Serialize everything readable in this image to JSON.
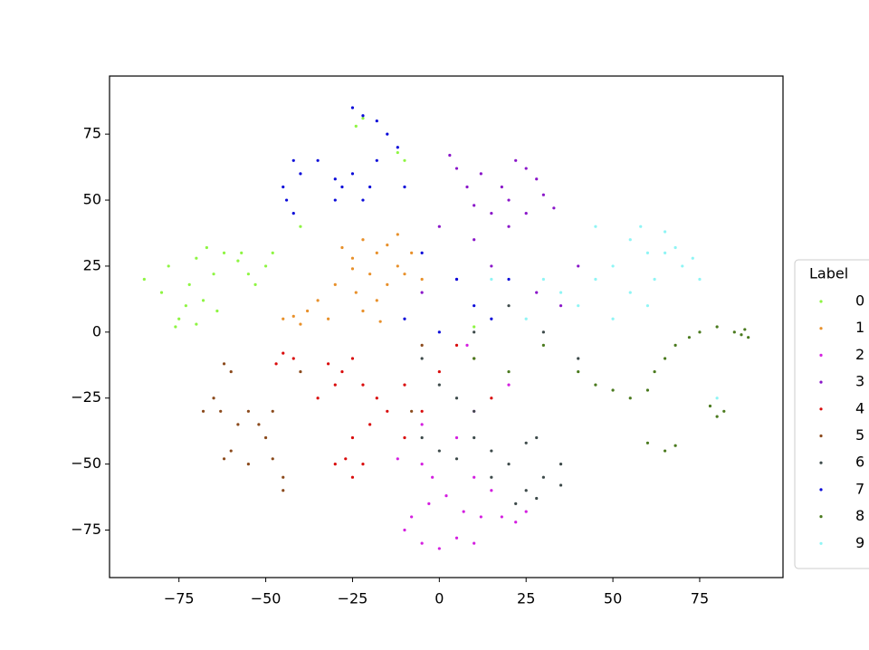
{
  "chart_data": {
    "type": "scatter",
    "legend_title": "Label",
    "legend": "right",
    "marker_radius": 1.6,
    "xlim": [
      -95,
      99
    ],
    "ylim": [
      -93,
      97
    ],
    "xticks": [
      {
        "value": -75,
        "label": "−75"
      },
      {
        "value": -50,
        "label": "−50"
      },
      {
        "value": -25,
        "label": "−25"
      },
      0,
      25,
      50,
      75
    ],
    "yticks": [
      {
        "value": -75,
        "label": "−75"
      },
      {
        "value": -50,
        "label": "−50"
      },
      {
        "value": -25,
        "label": "−25"
      },
      0,
      25,
      50,
      75
    ],
    "series": [
      {
        "name": "0",
        "color": "#8ef542",
        "x": [
          -85,
          -80,
          -78,
          -75,
          -73,
          -72,
          -70,
          -68,
          -67,
          -65,
          -64,
          -62,
          -58,
          -55,
          -53,
          -50,
          -48,
          -57,
          -76,
          -70,
          -24,
          -22,
          -10,
          -12,
          -40,
          10
        ],
        "y": [
          20,
          15,
          25,
          5,
          10,
          18,
          28,
          12,
          32,
          22,
          8,
          30,
          27,
          22,
          18,
          25,
          30,
          30,
          2,
          3,
          78,
          81,
          65,
          68,
          40,
          2
        ]
      },
      {
        "name": "1",
        "color": "#e8902a",
        "x": [
          -28,
          -25,
          -22,
          -18,
          -15,
          -12,
          -8,
          -10,
          -20,
          -24,
          -22,
          -18,
          -15,
          -12,
          -45,
          -42,
          -38,
          -35,
          -32,
          -40,
          -30,
          -5,
          -25,
          -17
        ],
        "y": [
          32,
          28,
          35,
          30,
          33,
          37,
          30,
          22,
          22,
          15,
          8,
          12,
          18,
          25,
          5,
          6,
          8,
          12,
          5,
          3,
          18,
          20,
          24,
          4
        ]
      },
      {
        "name": "2",
        "color": "#d41fe0",
        "x": [
          -10,
          -5,
          0,
          5,
          10,
          -8,
          -3,
          2,
          7,
          -2,
          -5,
          10,
          12,
          18,
          22,
          25,
          15,
          -12,
          5,
          10,
          -5,
          8,
          20
        ],
        "y": [
          -75,
          -80,
          -82,
          -78,
          -80,
          -70,
          -65,
          -62,
          -68,
          -55,
          -50,
          -55,
          -70,
          -70,
          -72,
          -68,
          -60,
          -48,
          -40,
          -30,
          -35,
          -5,
          -20
        ]
      },
      {
        "name": "3",
        "color": "#8a16c9",
        "x": [
          5,
          8,
          3,
          10,
          12,
          15,
          20,
          22,
          25,
          28,
          30,
          33,
          20,
          18,
          25,
          0,
          10,
          15,
          5,
          -5,
          28,
          35,
          40
        ],
        "y": [
          62,
          55,
          67,
          48,
          60,
          45,
          50,
          65,
          62,
          58,
          52,
          47,
          40,
          55,
          45,
          40,
          35,
          25,
          20,
          15,
          15,
          10,
          25
        ]
      },
      {
        "name": "4",
        "color": "#d90b0b",
        "x": [
          -45,
          -42,
          -47,
          -32,
          -28,
          -25,
          -30,
          -35,
          -22,
          -18,
          -15,
          -20,
          -25,
          -27,
          -22,
          -25,
          -30,
          -10,
          -5,
          0,
          5,
          15,
          -10
        ],
        "y": [
          -8,
          -10,
          -12,
          -12,
          -15,
          -10,
          -20,
          -25,
          -20,
          -25,
          -30,
          -35,
          -40,
          -48,
          -50,
          -55,
          -50,
          -20,
          -30,
          -15,
          -5,
          -25,
          -40
        ]
      },
      {
        "name": "5",
        "color": "#8b4a1c",
        "x": [
          -62,
          -60,
          -65,
          -68,
          -63,
          -58,
          -55,
          -60,
          -62,
          -55,
          -50,
          -48,
          -45,
          -45,
          -52,
          -48,
          -40,
          -5,
          10,
          -8
        ],
        "y": [
          -12,
          -15,
          -25,
          -30,
          -30,
          -35,
          -30,
          -45,
          -48,
          -50,
          -40,
          -48,
          -55,
          -60,
          -35,
          -30,
          -15,
          -5,
          -10,
          -30
        ]
      },
      {
        "name": "6",
        "color": "#3d4a4a",
        "x": [
          -5,
          0,
          5,
          10,
          15,
          20,
          25,
          28,
          30,
          35,
          35,
          25,
          22,
          28,
          15,
          10,
          5,
          0,
          -5,
          10,
          20,
          30,
          40
        ],
        "y": [
          -40,
          -45,
          -48,
          -40,
          -45,
          -50,
          -42,
          -40,
          -55,
          -50,
          -58,
          -60,
          -65,
          -63,
          -55,
          -30,
          -25,
          -20,
          -10,
          0,
          10,
          0,
          -10
        ]
      },
      {
        "name": "7",
        "color": "#0b0bd9",
        "x": [
          -45,
          -42,
          -40,
          -44,
          -42,
          -35,
          -30,
          -28,
          -25,
          -22,
          -20,
          -30,
          -25,
          -22,
          -18,
          -15,
          -12,
          -18,
          -10,
          -5,
          5,
          10,
          15,
          0,
          20,
          -10
        ],
        "y": [
          55,
          65,
          60,
          50,
          45,
          65,
          58,
          55,
          60,
          50,
          55,
          50,
          85,
          82,
          80,
          75,
          70,
          65,
          55,
          30,
          20,
          10,
          5,
          0,
          20,
          5
        ]
      },
      {
        "name": "8",
        "color": "#4a7a1e",
        "x": [
          40,
          45,
          50,
          55,
          60,
          62,
          65,
          68,
          72,
          75,
          80,
          85,
          87,
          88,
          89,
          78,
          80,
          82,
          60,
          65,
          68,
          30,
          20,
          10
        ],
        "y": [
          -15,
          -20,
          -22,
          -25,
          -22,
          -15,
          -10,
          -5,
          -2,
          0,
          2,
          0,
          -1,
          1,
          -2,
          -28,
          -32,
          -30,
          -42,
          -45,
          -43,
          -5,
          -15,
          -10
        ]
      },
      {
        "name": "9",
        "color": "#8ff5f5",
        "x": [
          50,
          55,
          58,
          60,
          62,
          65,
          68,
          70,
          73,
          75,
          55,
          60,
          50,
          45,
          40,
          35,
          30,
          25,
          15,
          65,
          80,
          45
        ],
        "y": [
          25,
          35,
          40,
          30,
          20,
          38,
          32,
          25,
          28,
          20,
          15,
          10,
          5,
          20,
          10,
          15,
          20,
          5,
          20,
          30,
          -25,
          40
        ]
      }
    ]
  }
}
